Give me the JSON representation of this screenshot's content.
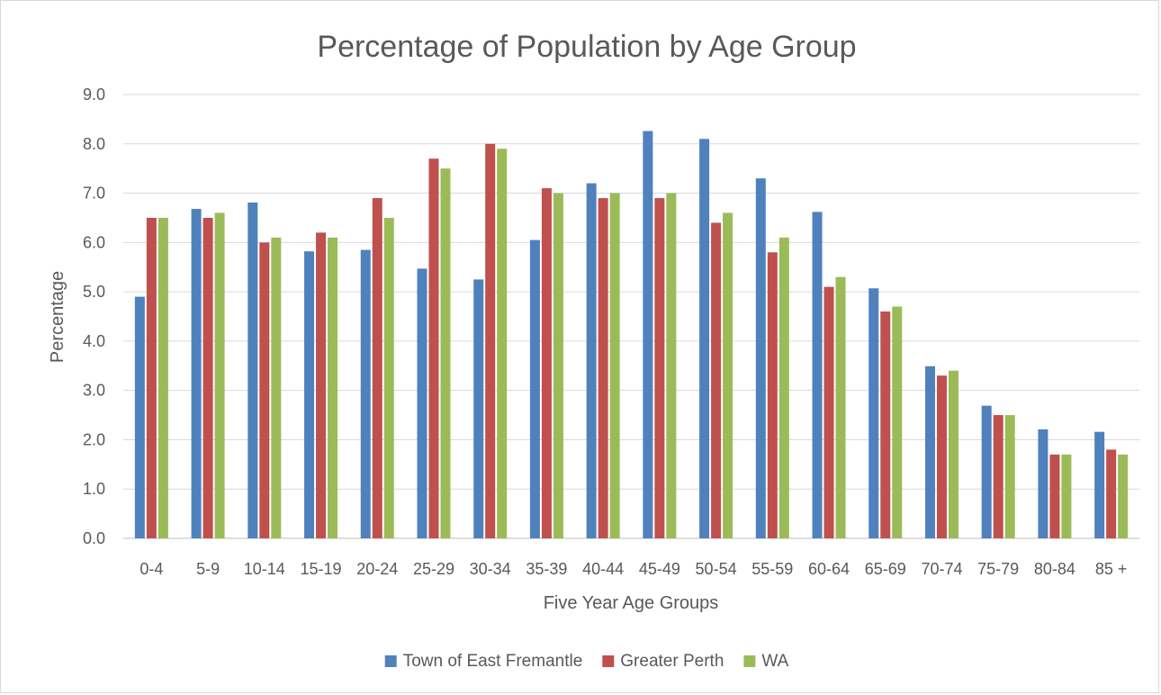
{
  "chart_data": {
    "type": "bar",
    "title": "Percentage of Population by Age Group",
    "xlabel": "Five Year Age Groups",
    "ylabel": "Percentage",
    "ylim": [
      0,
      9
    ],
    "yticks": [
      "0.0",
      "1.0",
      "2.0",
      "3.0",
      "4.0",
      "5.0",
      "6.0",
      "7.0",
      "8.0",
      "9.0"
    ],
    "grid": true,
    "legend_position": "bottom",
    "categories": [
      "0-4",
      "5-9",
      "10-14",
      "15-19",
      "20-24",
      "25-29",
      "30-34",
      "35-39",
      "40-44",
      "45-49",
      "50-54",
      "55-59",
      "60-64",
      "65-69",
      "70-74",
      "75-79",
      "80-84",
      "85 +"
    ],
    "series": [
      {
        "name": "Town of East Fremantle",
        "color": "#4f81bd",
        "values": [
          4.9,
          6.68,
          6.81,
          5.82,
          5.85,
          5.47,
          5.25,
          6.05,
          7.2,
          8.26,
          8.1,
          7.3,
          6.62,
          5.07,
          3.49,
          2.69,
          2.21,
          2.16
        ]
      },
      {
        "name": "Greater Perth",
        "color": "#c0504d",
        "values": [
          6.5,
          6.5,
          6.0,
          6.2,
          6.9,
          7.7,
          8.0,
          7.1,
          6.9,
          6.9,
          6.4,
          5.8,
          5.1,
          4.6,
          3.3,
          2.5,
          1.7,
          1.8
        ]
      },
      {
        "name": "WA",
        "color": "#9bbb59",
        "values": [
          6.5,
          6.6,
          6.1,
          6.1,
          6.5,
          7.5,
          7.9,
          7.0,
          7.0,
          7.0,
          6.6,
          6.1,
          5.3,
          4.7,
          3.4,
          2.5,
          1.7,
          1.7
        ]
      }
    ]
  }
}
